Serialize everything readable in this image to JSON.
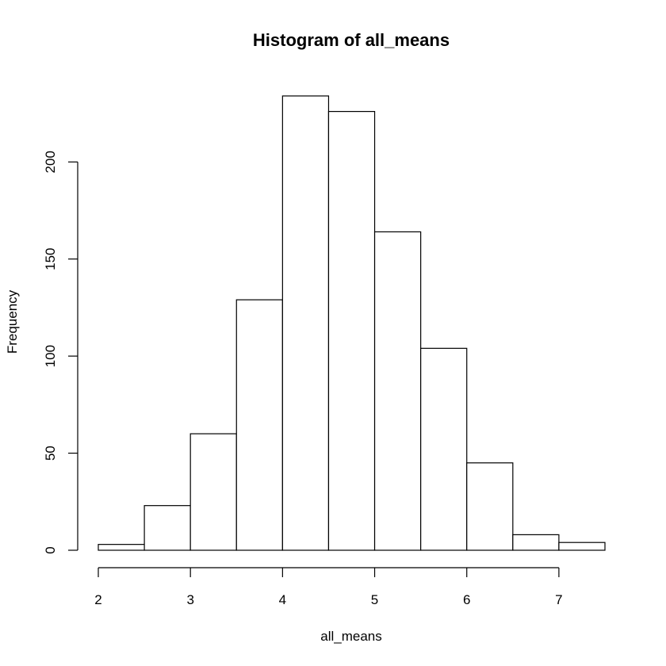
{
  "chart_data": {
    "type": "bar",
    "title": "Histogram of all_means",
    "xlabel": "all_means",
    "ylabel": "Frequency",
    "bins": [
      {
        "start": 2.0,
        "end": 2.5,
        "count": 3
      },
      {
        "start": 2.5,
        "end": 3.0,
        "count": 23
      },
      {
        "start": 3.0,
        "end": 3.5,
        "count": 60
      },
      {
        "start": 3.5,
        "end": 4.0,
        "count": 129
      },
      {
        "start": 4.0,
        "end": 4.5,
        "count": 234
      },
      {
        "start": 4.5,
        "end": 5.0,
        "count": 226
      },
      {
        "start": 5.0,
        "end": 5.5,
        "count": 164
      },
      {
        "start": 5.5,
        "end": 6.0,
        "count": 104
      },
      {
        "start": 6.0,
        "end": 6.5,
        "count": 45
      },
      {
        "start": 6.5,
        "end": 7.0,
        "count": 8
      },
      {
        "start": 7.0,
        "end": 7.5,
        "count": 4
      }
    ],
    "xticks": [
      2,
      3,
      4,
      5,
      6,
      7
    ],
    "yticks": [
      0,
      50,
      100,
      150,
      200
    ],
    "xlim": [
      2,
      7.5
    ],
    "ylim": [
      0,
      234
    ],
    "grid": false,
    "colors": {
      "bar_fill": "#ffffff",
      "bar_stroke": "#000000"
    }
  }
}
